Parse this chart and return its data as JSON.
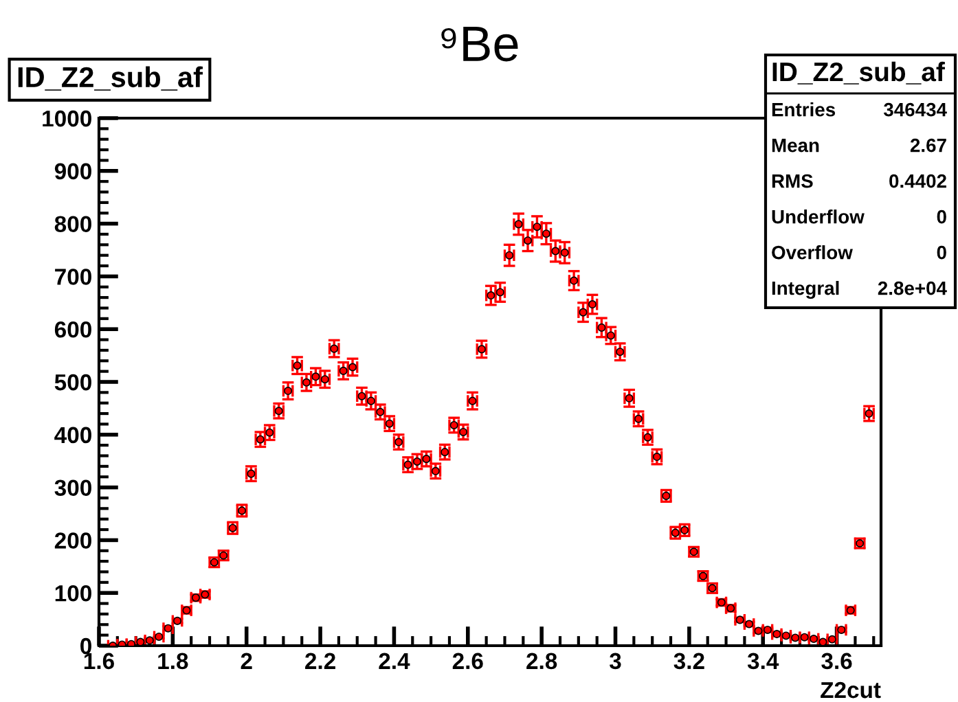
{
  "chart_data": {
    "type": "scatter",
    "title": "⁹Be",
    "xlabel": "Z2cut",
    "x": [
      1.6375,
      1.6625,
      1.6875,
      1.7125,
      1.7375,
      1.7625,
      1.7875,
      1.8125,
      1.8375,
      1.8625,
      1.8875,
      1.9125,
      1.9375,
      1.9625,
      1.9875,
      2.0125,
      2.0375,
      2.0625,
      2.0875,
      2.1125,
      2.1375,
      2.1625,
      2.1875,
      2.2125,
      2.2375,
      2.2625,
      2.2875,
      2.3125,
      2.3375,
      2.3625,
      2.3875,
      2.4125,
      2.4375,
      2.4625,
      2.4875,
      2.5125,
      2.5375,
      2.5625,
      2.5875,
      2.6125,
      2.6375,
      2.6625,
      2.6875,
      2.7125,
      2.7375,
      2.7625,
      2.7875,
      2.8125,
      2.8375,
      2.8625,
      2.8875,
      2.9125,
      2.9375,
      2.9625,
      2.9875,
      3.0125,
      3.0375,
      3.0625,
      3.0875,
      3.1125,
      3.1375,
      3.1625,
      3.1875,
      3.2125,
      3.2375,
      3.2625,
      3.2875,
      3.3125,
      3.3375,
      3.3625,
      3.3875,
      3.4125,
      3.4375,
      3.4625,
      3.4875,
      3.5125,
      3.5375,
      3.5625,
      3.5875,
      3.6125,
      3.6375,
      3.6625,
      3.6875
    ],
    "series": [
      {
        "color": "#ff0000",
        "values": [
          0,
          2,
          3,
          7,
          10,
          17,
          33,
          47,
          67,
          91,
          97,
          158,
          171,
          223,
          256,
          326,
          391,
          404,
          445,
          483,
          531,
          499,
          510,
          505,
          563,
          521,
          528,
          473,
          464,
          443,
          421,
          386,
          343,
          349,
          354,
          331,
          367,
          418,
          405,
          464,
          562,
          664,
          670,
          740,
          799,
          768,
          794,
          781,
          748,
          745,
          692,
          632,
          647,
          603,
          588,
          557,
          469,
          430,
          395,
          358,
          284,
          214,
          219,
          178,
          132,
          109,
          82,
          71,
          49,
          41,
          28,
          30,
          22,
          19,
          15,
          16,
          13,
          7,
          12,
          30,
          67,
          194,
          440
        ],
        "errors": [
          2,
          3,
          3,
          3,
          3,
          3,
          4,
          4,
          6,
          6,
          6,
          9,
          9,
          11,
          11,
          14,
          14,
          14,
          14,
          16,
          16,
          16,
          16,
          16,
          16,
          16,
          16,
          16,
          16,
          14,
          14,
          14,
          14,
          14,
          14,
          14,
          14,
          14,
          14,
          16,
          16,
          18,
          18,
          20,
          20,
          20,
          20,
          20,
          20,
          20,
          18,
          18,
          18,
          18,
          16,
          16,
          16,
          14,
          14,
          14,
          11,
          11,
          11,
          9,
          9,
          9,
          6,
          6,
          4,
          4,
          4,
          4,
          4,
          3,
          3,
          3,
          3,
          3,
          3,
          4,
          6,
          9,
          14
        ],
        "xerrors": [
          0.0125,
          0.0125,
          0.0125,
          0.0125,
          0.0125,
          0.0125,
          0.0125,
          0.0125,
          0.0125,
          0.0125,
          0.0125,
          0.0125,
          0.0125,
          0.0125,
          0.0125,
          0.0125,
          0.0125,
          0.0125,
          0.0125,
          0.0125,
          0.0125,
          0.0125,
          0.0125,
          0.0125,
          0.0125,
          0.0125,
          0.0125,
          0.0125,
          0.0125,
          0.0125,
          0.0125,
          0.0125,
          0.0125,
          0.0125,
          0.0125,
          0.0125,
          0.0125,
          0.0125,
          0.0125,
          0.0125,
          0.0125,
          0.0125,
          0.0125,
          0.0125,
          0.0125,
          0.0125,
          0.0125,
          0.0125,
          0.0125,
          0.0125,
          0.0125,
          0.0125,
          0.0125,
          0.0125,
          0.0125,
          0.0125,
          0.0125,
          0.0125,
          0.0125,
          0.0125,
          0.0125,
          0.0125,
          0.0125,
          0.0125,
          0.0125,
          0.0125,
          0.0125,
          0.0125,
          0.0125,
          0.0125,
          0.0125,
          0.0125,
          0.0125,
          0.0125,
          0.0125,
          0.0125,
          0.0125,
          0.0125,
          0.0125,
          0.0125,
          0.0125,
          0.0125,
          0.0125
        ]
      }
    ],
    "xlim": [
      1.6,
      3.72
    ],
    "xticks": [
      1.6,
      1.8,
      2,
      2.2,
      2.4,
      2.6,
      2.8,
      3,
      3.2,
      3.4,
      3.6
    ],
    "ylim": [
      0,
      1000
    ],
    "yticks": [
      0,
      100,
      200,
      300,
      400,
      500,
      600,
      700,
      800,
      900,
      1000
    ],
    "grid": false,
    "annotations": [
      "ID_Z2_sub_af",
      "ID_Z2_sub_af",
      "Entries\t346434",
      "Mean\t2.67",
      "RMS\t0.4402",
      "Underflow\t0",
      "Overflow\t0",
      "Integral\t2.8e+04"
    ]
  }
}
